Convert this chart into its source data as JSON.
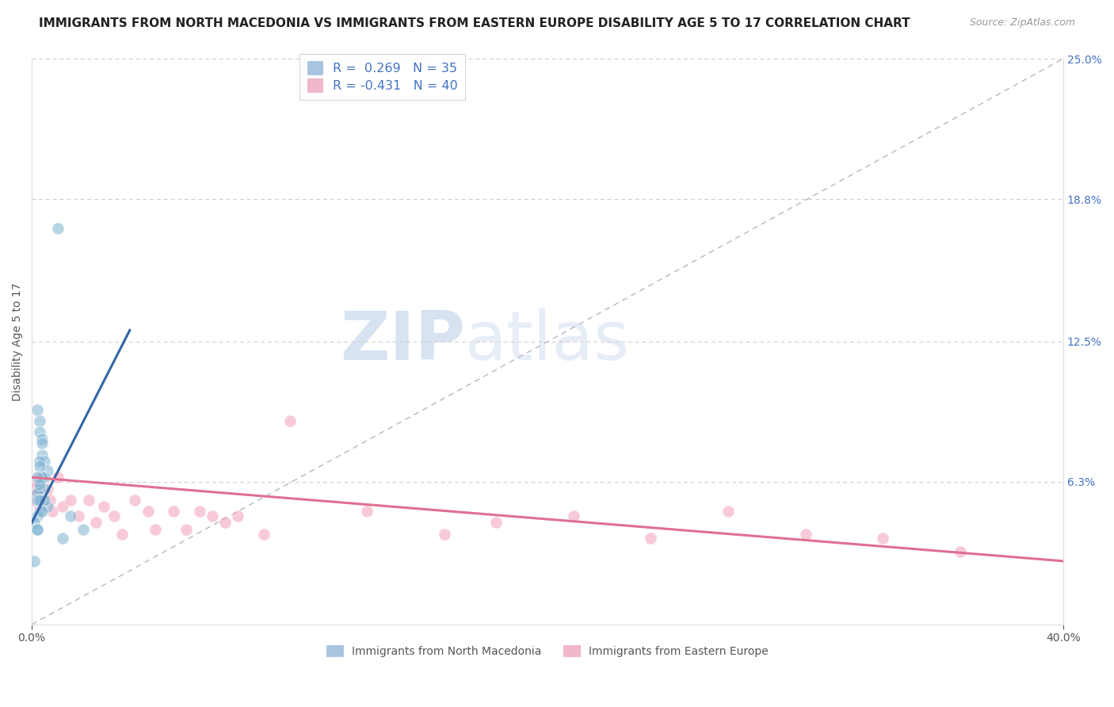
{
  "title": "IMMIGRANTS FROM NORTH MACEDONIA VS IMMIGRANTS FROM EASTERN EUROPE DISABILITY AGE 5 TO 17 CORRELATION CHART",
  "source": "Source: ZipAtlas.com",
  "ylabel": "Disability Age 5 to 17",
  "right_yticks": [
    0.0,
    0.063,
    0.125,
    0.188,
    0.25
  ],
  "right_yticklabels": [
    "",
    "6.3%",
    "12.5%",
    "18.8%",
    "25.0%"
  ],
  "legend_entries": [
    {
      "label": "R =  0.269   N = 35",
      "color": "#a8c4e0"
    },
    {
      "label": "R = -0.431   N = 40",
      "color": "#f0b8c8"
    }
  ],
  "legend_bottom": [
    "Immigrants from North Macedonia",
    "Immigrants from Eastern Europe"
  ],
  "blue_scatter_x": [
    0.002,
    0.003,
    0.003,
    0.004,
    0.004,
    0.005,
    0.006,
    0.005,
    0.004,
    0.005,
    0.004,
    0.003,
    0.003,
    0.002,
    0.003,
    0.004,
    0.003,
    0.002,
    0.003,
    0.002,
    0.001,
    0.002,
    0.01,
    0.003,
    0.002,
    0.004,
    0.006,
    0.005,
    0.003,
    0.004,
    0.002,
    0.001,
    0.015,
    0.02,
    0.012
  ],
  "blue_scatter_y": [
    0.095,
    0.09,
    0.085,
    0.082,
    0.075,
    0.072,
    0.068,
    0.065,
    0.08,
    0.06,
    0.065,
    0.072,
    0.07,
    0.065,
    0.06,
    0.055,
    0.055,
    0.058,
    0.05,
    0.048,
    0.045,
    0.042,
    0.175,
    0.062,
    0.055,
    0.055,
    0.052,
    0.055,
    0.055,
    0.05,
    0.042,
    0.028,
    0.048,
    0.042,
    0.038
  ],
  "pink_scatter_x": [
    0.001,
    0.001,
    0.002,
    0.002,
    0.003,
    0.003,
    0.004,
    0.005,
    0.006,
    0.007,
    0.008,
    0.01,
    0.012,
    0.015,
    0.018,
    0.022,
    0.025,
    0.028,
    0.032,
    0.035,
    0.04,
    0.045,
    0.048,
    0.055,
    0.06,
    0.065,
    0.07,
    0.075,
    0.08,
    0.09,
    0.1,
    0.13,
    0.16,
    0.18,
    0.21,
    0.24,
    0.27,
    0.3,
    0.33,
    0.36
  ],
  "pink_scatter_y": [
    0.06,
    0.055,
    0.062,
    0.058,
    0.065,
    0.052,
    0.055,
    0.058,
    0.06,
    0.055,
    0.05,
    0.065,
    0.052,
    0.055,
    0.048,
    0.055,
    0.045,
    0.052,
    0.048,
    0.04,
    0.055,
    0.05,
    0.042,
    0.05,
    0.042,
    0.05,
    0.048,
    0.045,
    0.048,
    0.04,
    0.09,
    0.05,
    0.04,
    0.045,
    0.048,
    0.038,
    0.05,
    0.04,
    0.038,
    0.032
  ],
  "blue_line_x": [
    0.0,
    0.038
  ],
  "blue_line_y": [
    0.045,
    0.13
  ],
  "pink_line_x": [
    0.0,
    0.4
  ],
  "pink_line_y": [
    0.065,
    0.028
  ],
  "ref_line_x": [
    0.0,
    0.4
  ],
  "ref_line_y": [
    0.0,
    0.25
  ],
  "xlim": [
    0.0,
    0.4
  ],
  "ylim": [
    0.0,
    0.25
  ],
  "grid_color": "#cccccc",
  "blue_color": "#7fb3d3",
  "pink_color": "#f4a0b8",
  "blue_line_color": "#3465a8",
  "pink_line_color": "#e07090",
  "ref_line_color": "#b0b8c8",
  "background_color": "#ffffff",
  "title_fontsize": 11,
  "axis_label_fontsize": 10,
  "scatter_size": 120,
  "scatter_alpha": 0.55,
  "scatter_edge_color": "#ffffff",
  "scatter_edge_width": 0.8
}
